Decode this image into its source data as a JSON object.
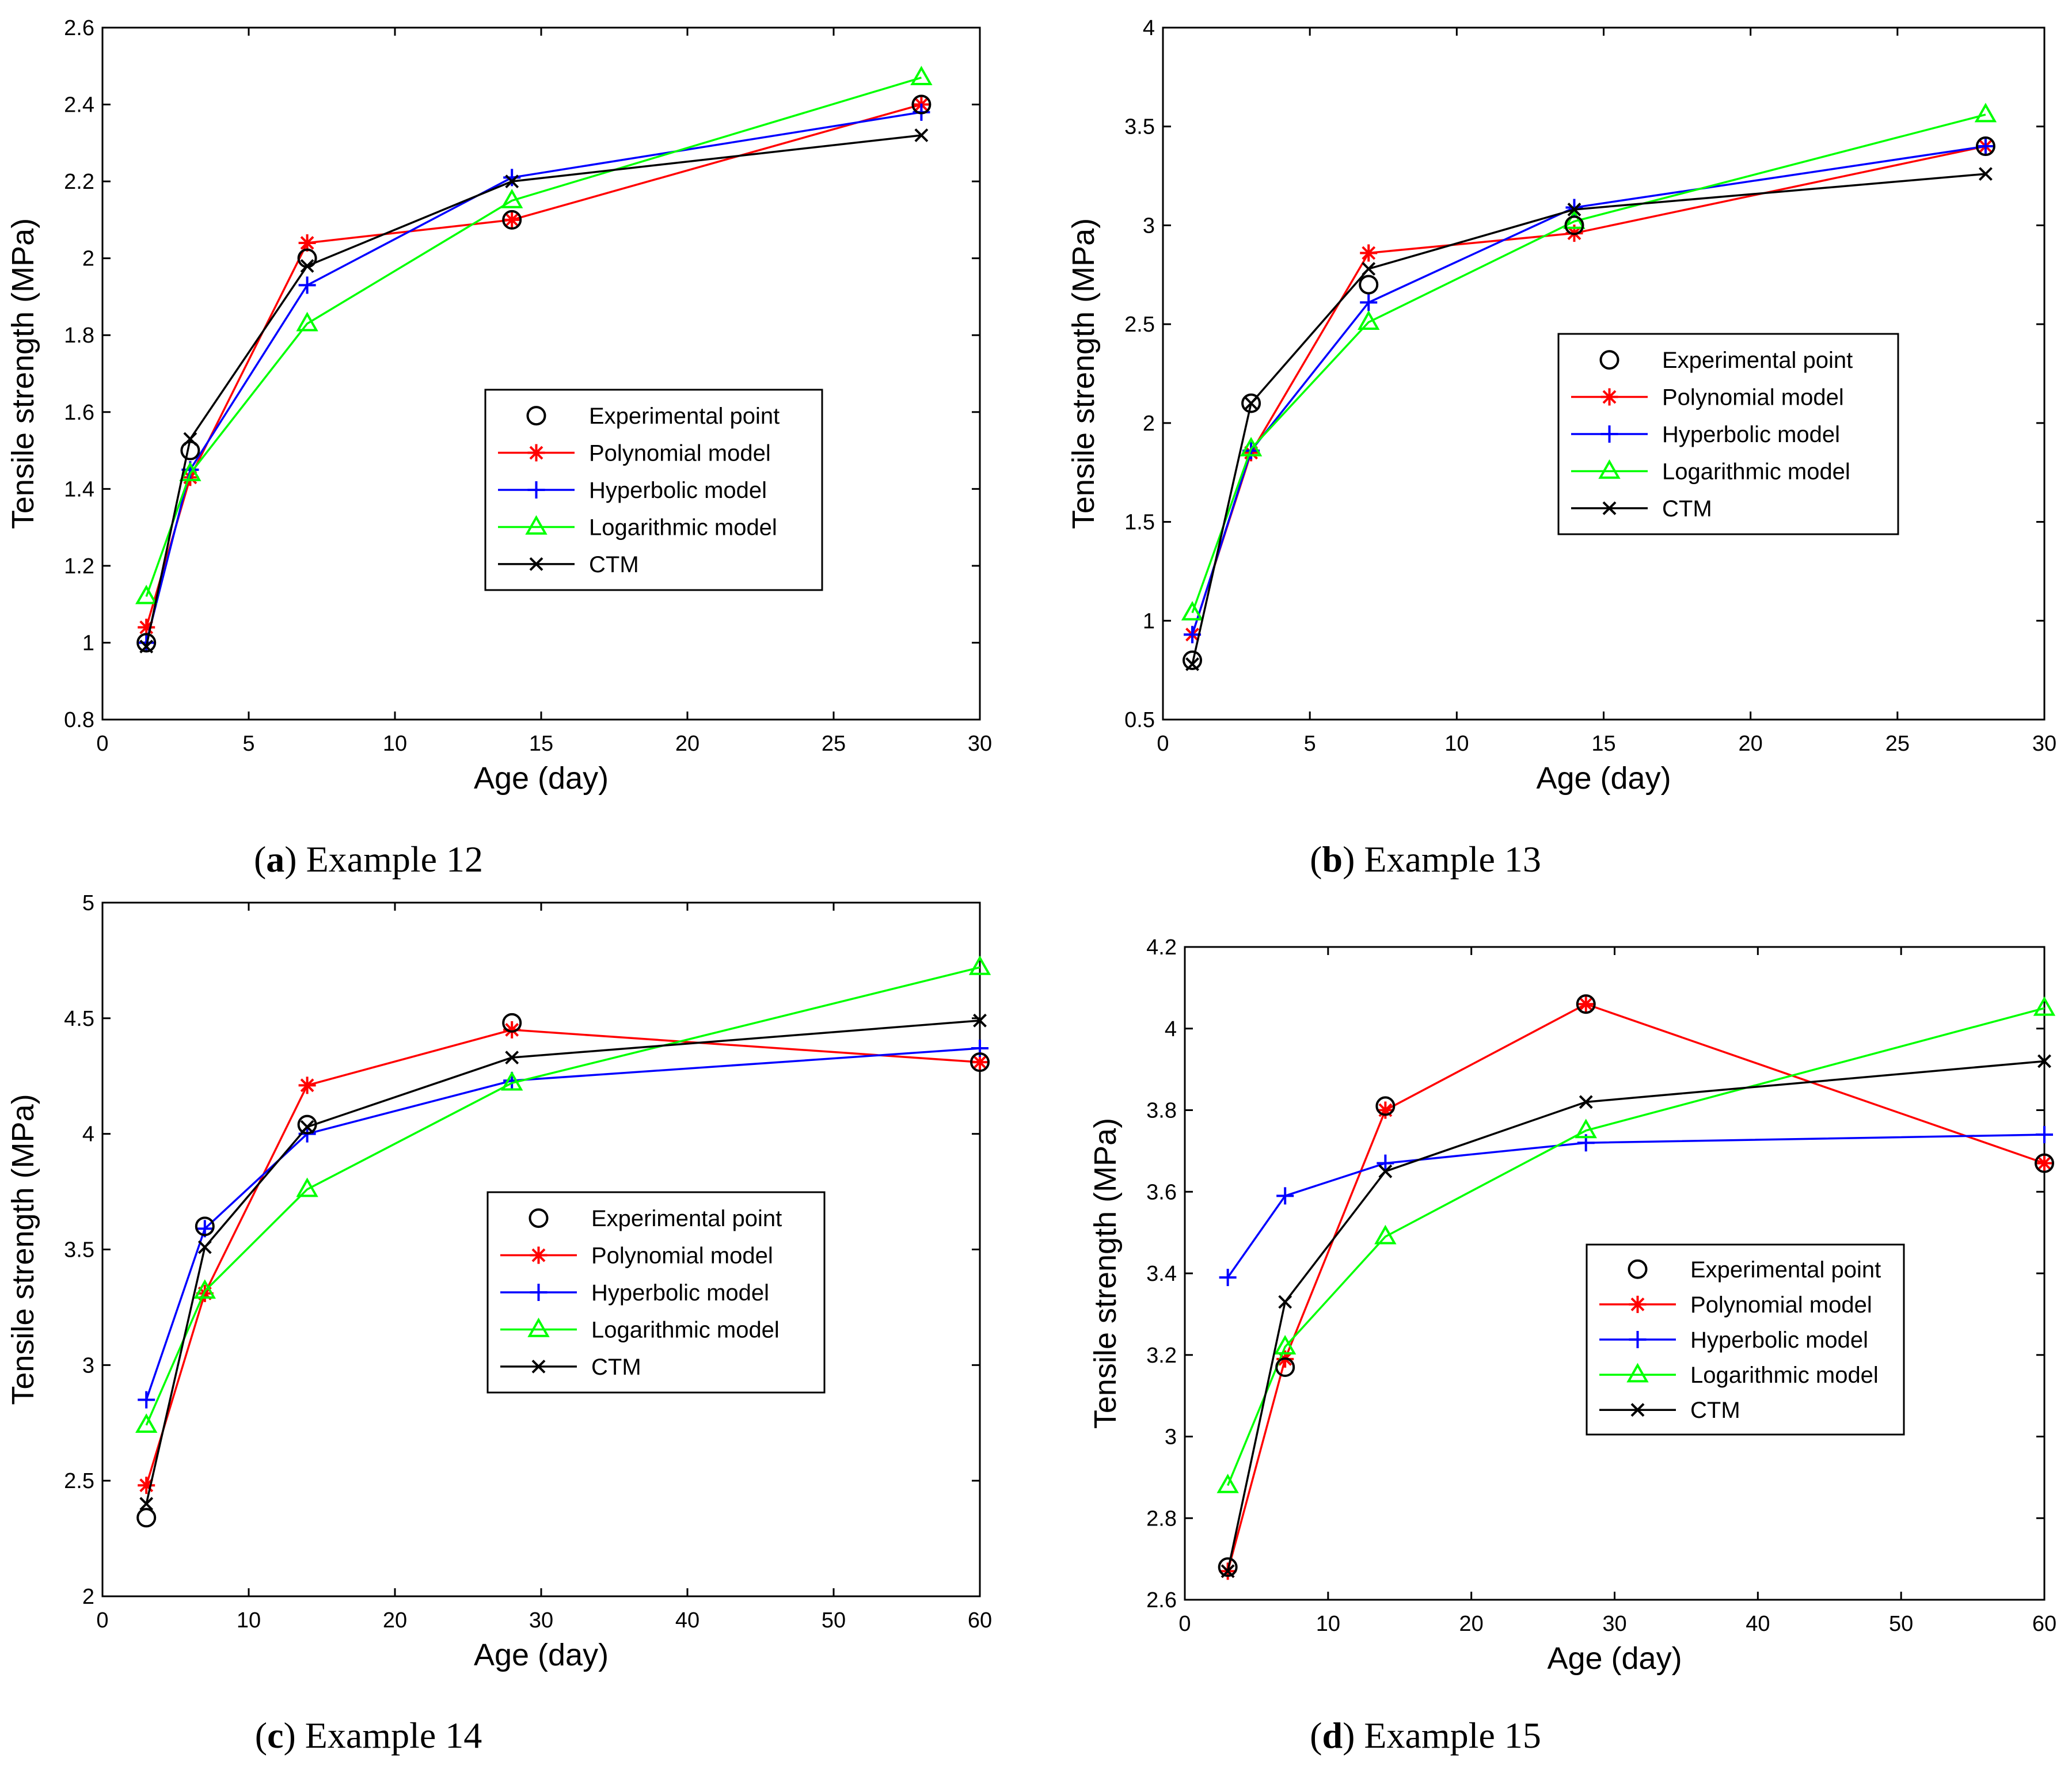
{
  "colors": {
    "experimental": "#000000",
    "polynomial": "#ff0000",
    "hyperbolic": "#0000ff",
    "logarithmic": "#00ff00",
    "ctm": "#000000"
  },
  "legend_labels": [
    "Experimental point",
    "Polynomial model",
    "Hyperbolic model",
    "Logarithmic model",
    "CTM"
  ],
  "chart_data": [
    {
      "type": "line",
      "caption_letter": "a",
      "caption_text": " Example 12",
      "xlabel": "Age (day)",
      "ylabel": "Tensile strength (MPa)",
      "xlim": [
        0,
        30
      ],
      "ylim": [
        0.8,
        2.6
      ],
      "xticks": [
        0,
        5,
        10,
        15,
        20,
        25,
        30
      ],
      "yticks": [
        0.8,
        1,
        1.2,
        1.4,
        1.6,
        1.8,
        2,
        2.2,
        2.4,
        2.6
      ],
      "ytick_labels": [
        "0.8",
        "1",
        "1.2",
        "1.4",
        "1.6",
        "1.8",
        "2",
        "2.2",
        "2.4",
        "2.6"
      ],
      "legend_position": "lower-right",
      "x": [
        1.5,
        3,
        7,
        14,
        28
      ],
      "series": [
        {
          "name": "Experimental point",
          "marker": "circle",
          "line": false,
          "values": [
            1.0,
            1.5,
            2.0,
            2.1,
            2.4
          ]
        },
        {
          "name": "Polynomial model",
          "marker": "star",
          "line": true,
          "values": [
            1.04,
            1.43,
            2.04,
            2.1,
            2.4
          ]
        },
        {
          "name": "Hyperbolic model",
          "marker": "plus",
          "line": true,
          "values": [
            1.0,
            1.45,
            1.93,
            2.21,
            2.38
          ]
        },
        {
          "name": "Logarithmic model",
          "marker": "triangle",
          "line": true,
          "values": [
            1.12,
            1.44,
            1.83,
            2.15,
            2.47
          ]
        },
        {
          "name": "CTM",
          "marker": "x",
          "line": true,
          "values": [
            0.99,
            1.53,
            1.98,
            2.2,
            2.32
          ]
        }
      ]
    },
    {
      "type": "line",
      "caption_letter": "b",
      "caption_text": " Example 13",
      "xlabel": "Age (day)",
      "ylabel": "Tensile strength (MPa)",
      "xlim": [
        0,
        30
      ],
      "ylim": [
        0.5,
        4
      ],
      "xticks": [
        0,
        5,
        10,
        15,
        20,
        25,
        30
      ],
      "yticks": [
        0.5,
        1,
        1.5,
        2,
        2.5,
        3,
        3.5,
        4
      ],
      "ytick_labels": [
        "0.5",
        "1",
        "1.5",
        "2",
        "2.5",
        "3",
        "3.5",
        "4"
      ],
      "legend_position": "center-right",
      "x": [
        1,
        3,
        7,
        14,
        28
      ],
      "series": [
        {
          "name": "Experimental point",
          "marker": "circle",
          "line": false,
          "values": [
            0.8,
            2.1,
            2.7,
            3.0,
            3.4
          ]
        },
        {
          "name": "Polynomial model",
          "marker": "star",
          "line": true,
          "values": [
            0.93,
            1.85,
            2.86,
            2.96,
            3.4
          ]
        },
        {
          "name": "Hyperbolic model",
          "marker": "plus",
          "line": true,
          "values": [
            0.93,
            1.86,
            2.61,
            3.09,
            3.4
          ]
        },
        {
          "name": "Logarithmic model",
          "marker": "triangle",
          "line": true,
          "values": [
            1.04,
            1.87,
            2.51,
            3.02,
            3.56
          ]
        },
        {
          "name": "CTM",
          "marker": "x",
          "line": true,
          "values": [
            0.78,
            2.1,
            2.78,
            3.08,
            3.26
          ]
        }
      ]
    },
    {
      "type": "line",
      "caption_letter": "c",
      "caption_text": " Example 14",
      "xlabel": "Age (day)",
      "ylabel": "Tensile strength (MPa)",
      "xlim": [
        0,
        60
      ],
      "ylim": [
        2,
        5
      ],
      "xticks": [
        0,
        10,
        20,
        30,
        40,
        50,
        60
      ],
      "yticks": [
        2,
        2.5,
        3,
        3.5,
        4,
        4.5,
        5
      ],
      "ytick_labels": [
        "2",
        "2.5",
        "3",
        "3.5",
        "4",
        "4.5",
        "5"
      ],
      "legend_position": "center-right",
      "x": [
        3,
        7,
        14,
        28,
        60
      ],
      "series": [
        {
          "name": "Experimental point",
          "marker": "circle",
          "line": false,
          "values": [
            2.34,
            3.6,
            4.04,
            4.48,
            4.31
          ]
        },
        {
          "name": "Polynomial model",
          "marker": "star",
          "line": true,
          "values": [
            2.48,
            3.31,
            4.21,
            4.45,
            4.31
          ]
        },
        {
          "name": "Hyperbolic model",
          "marker": "plus",
          "line": true,
          "values": [
            2.85,
            3.59,
            4.0,
            4.23,
            4.37
          ]
        },
        {
          "name": "Logarithmic model",
          "marker": "triangle",
          "line": true,
          "values": [
            2.74,
            3.32,
            3.76,
            4.22,
            4.72
          ]
        },
        {
          "name": "CTM",
          "marker": "x",
          "line": true,
          "values": [
            2.4,
            3.51,
            4.03,
            4.33,
            4.49
          ]
        }
      ]
    },
    {
      "type": "line",
      "caption_letter": "d",
      "caption_text": " Example 15",
      "xlabel": "Age (day)",
      "ylabel": "Tensile strength (MPa)",
      "xlim": [
        0,
        60
      ],
      "ylim": [
        2.6,
        4.2
      ],
      "xticks": [
        0,
        10,
        20,
        30,
        40,
        50,
        60
      ],
      "yticks": [
        2.6,
        2.8,
        3,
        3.2,
        3.4,
        3.6,
        3.8,
        4,
        4.2
      ],
      "ytick_labels": [
        "2.6",
        "2.8",
        "3",
        "3.2",
        "3.4",
        "3.6",
        "3.8",
        "4",
        "4.2"
      ],
      "legend_position": "lower-right",
      "x": [
        3,
        7,
        14,
        28,
        60
      ],
      "series": [
        {
          "name": "Experimental point",
          "marker": "circle",
          "line": false,
          "values": [
            2.68,
            3.17,
            3.81,
            4.06,
            3.67
          ]
        },
        {
          "name": "Polynomial model",
          "marker": "star",
          "line": true,
          "values": [
            2.67,
            3.19,
            3.8,
            4.06,
            3.67
          ]
        },
        {
          "name": "Hyperbolic model",
          "marker": "plus",
          "line": true,
          "values": [
            3.39,
            3.59,
            3.67,
            3.72,
            3.74
          ]
        },
        {
          "name": "Logarithmic model",
          "marker": "triangle",
          "line": true,
          "values": [
            2.88,
            3.22,
            3.49,
            3.75,
            4.05
          ]
        },
        {
          "name": "CTM",
          "marker": "x",
          "line": true,
          "values": [
            2.67,
            3.33,
            3.65,
            3.82,
            3.92
          ]
        }
      ]
    }
  ]
}
